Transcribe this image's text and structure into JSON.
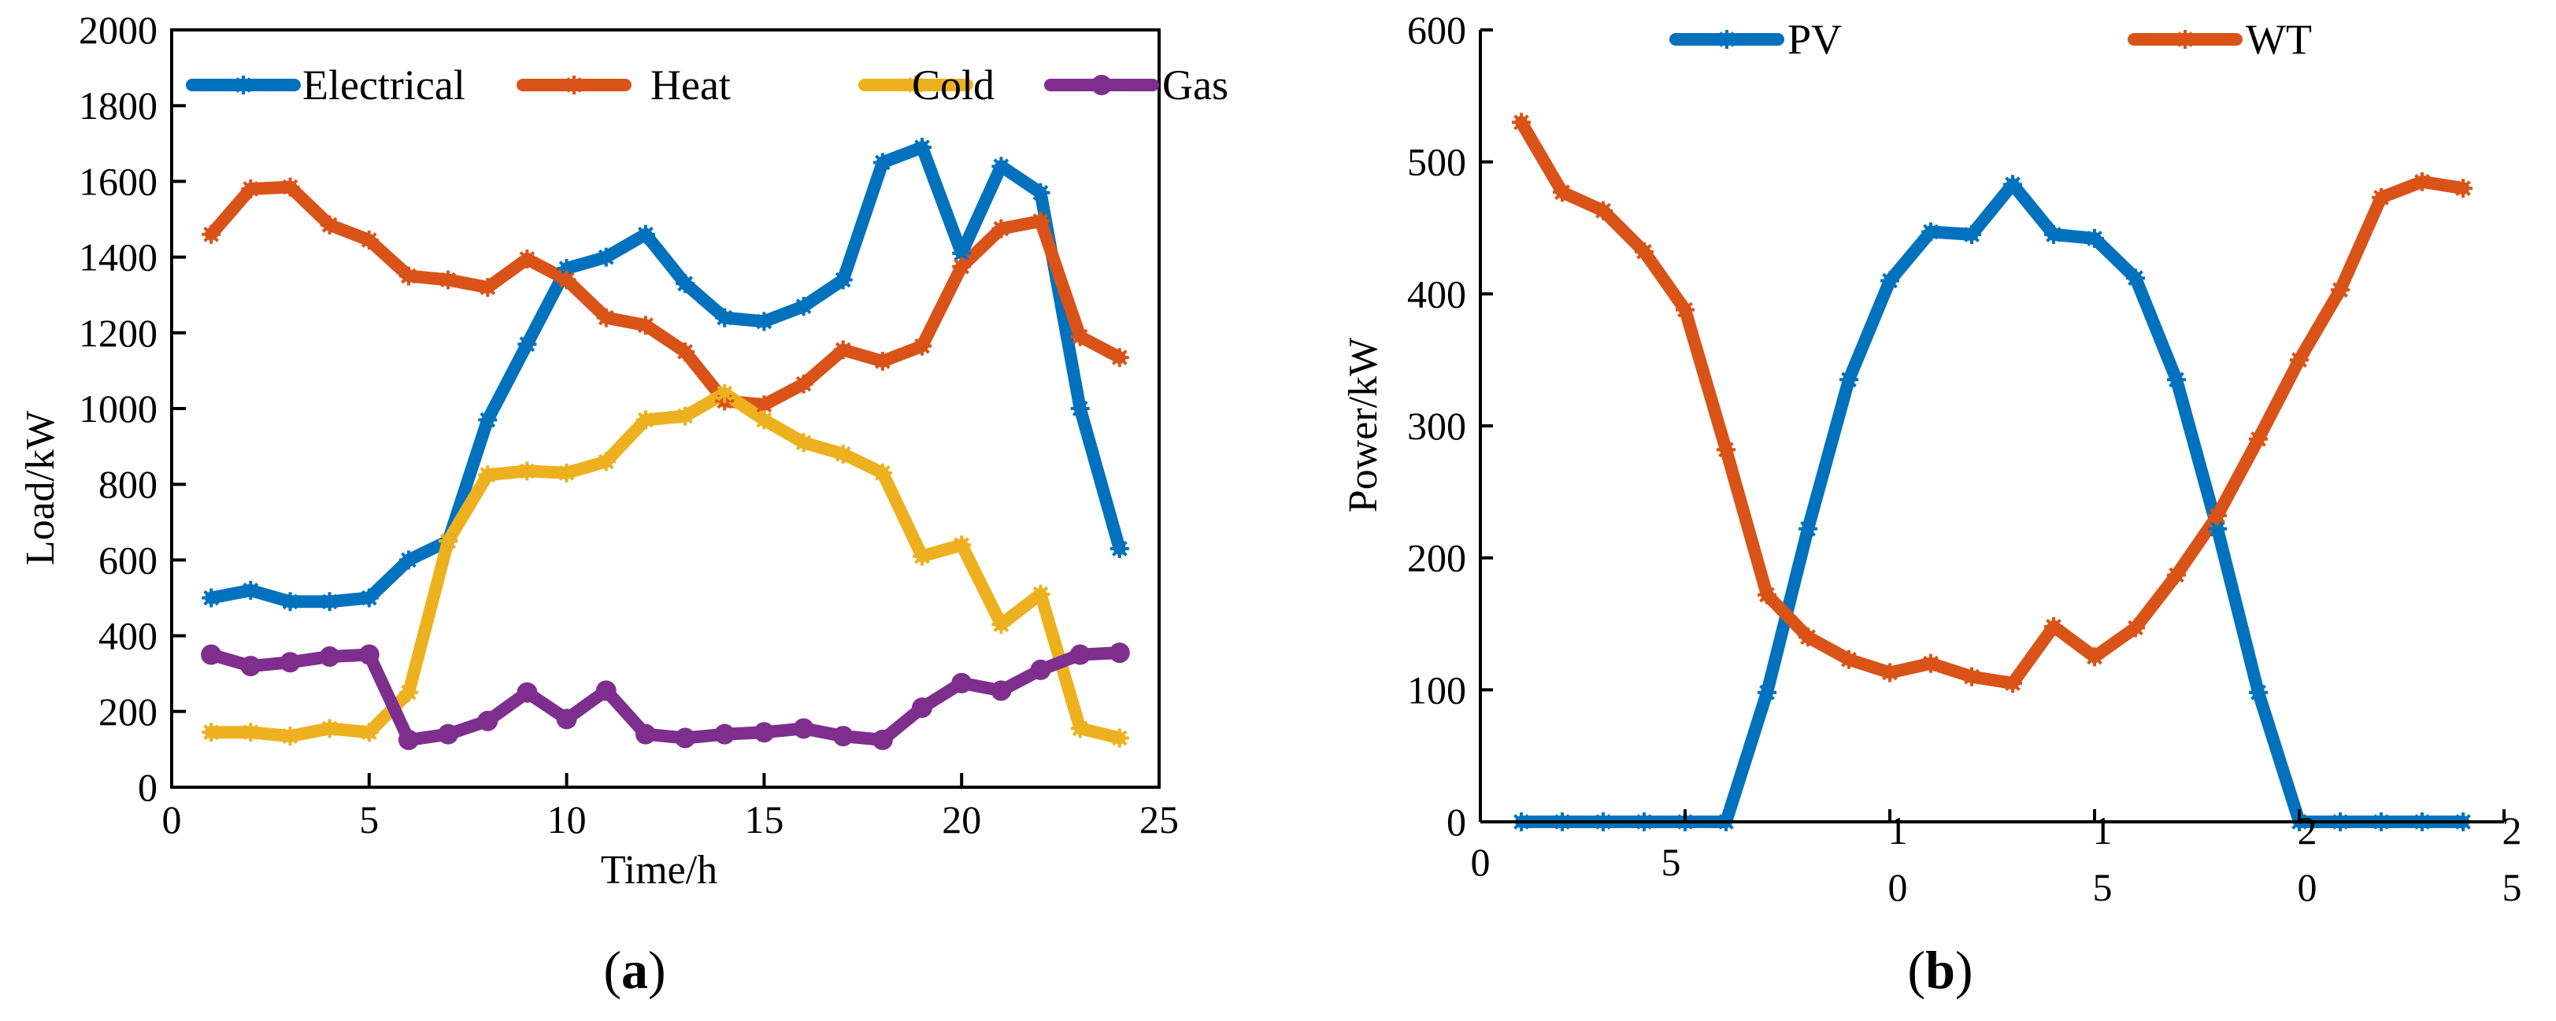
{
  "chart_data": [
    {
      "type": "line",
      "caption_letter": "a",
      "xlabel": "Time/h",
      "ylabel": "Load/kW",
      "xlim": [
        0,
        25
      ],
      "ylim": [
        0,
        2000
      ],
      "xticks": [
        "0",
        "5",
        "10",
        "15",
        "20",
        "25"
      ],
      "yticks": [
        "0",
        "200",
        "400",
        "600",
        "800",
        "1000",
        "1200",
        "1400",
        "1600",
        "1800",
        "2000"
      ],
      "legend_position": "top",
      "x": [
        1,
        2,
        3,
        4,
        5,
        6,
        7,
        8,
        9,
        10,
        11,
        12,
        13,
        14,
        15,
        16,
        17,
        18,
        19,
        20,
        21,
        22,
        23,
        24
      ],
      "series": [
        {
          "name": "Electrical",
          "color": "#0072BD",
          "marker": "star",
          "values": [
            500,
            520,
            490,
            490,
            500,
            600,
            650,
            970,
            1170,
            1370,
            1400,
            1460,
            1330,
            1240,
            1230,
            1270,
            1340,
            1650,
            1690,
            1410,
            1640,
            1570,
            1000,
            630
          ]
        },
        {
          "name": "Heat",
          "color": "#D95319",
          "marker": "star",
          "values": [
            1460,
            1580,
            1585,
            1485,
            1445,
            1350,
            1340,
            1320,
            1395,
            1340,
            1240,
            1220,
            1150,
            1020,
            1010,
            1065,
            1155,
            1125,
            1165,
            1375,
            1475,
            1495,
            1190,
            1135
          ]
        },
        {
          "name": "Cold",
          "color": "#EDB120",
          "marker": "star",
          "values": [
            145,
            145,
            135,
            155,
            145,
            250,
            650,
            825,
            835,
            830,
            860,
            970,
            980,
            1040,
            970,
            910,
            880,
            830,
            610,
            640,
            430,
            510,
            155,
            130
          ]
        },
        {
          "name": "Gas",
          "color": "#7E2F8E",
          "marker": "circle",
          "values": [
            350,
            320,
            330,
            345,
            350,
            125,
            140,
            175,
            250,
            180,
            255,
            140,
            130,
            140,
            145,
            155,
            135,
            125,
            210,
            275,
            255,
            310,
            350,
            355
          ]
        }
      ]
    },
    {
      "type": "line",
      "caption_letter": "b",
      "xlabel": "",
      "ylabel": "Power/kW",
      "xlim": [
        0,
        25
      ],
      "ylim": [
        0,
        600
      ],
      "xticks": [
        "0",
        "5",
        "10",
        "15",
        "20",
        "25"
      ],
      "yticks": [
        "0",
        "100",
        "200",
        "300",
        "400",
        "500",
        "600"
      ],
      "legend_position": "top",
      "x": [
        1,
        2,
        3,
        4,
        5,
        6,
        7,
        8,
        9,
        10,
        11,
        12,
        13,
        14,
        15,
        16,
        17,
        18,
        19,
        20,
        21,
        22,
        23,
        24
      ],
      "series": [
        {
          "name": "PV",
          "color": "#0072BD",
          "marker": "star",
          "values": [
            0,
            0,
            0,
            0,
            0,
            0,
            98,
            222,
            335,
            410,
            447,
            445,
            483,
            445,
            442,
            412,
            335,
            222,
            98,
            0,
            0,
            0,
            0,
            0
          ]
        },
        {
          "name": "WT",
          "color": "#D95319",
          "marker": "star",
          "values": [
            530,
            477,
            463,
            432,
            388,
            282,
            172,
            140,
            123,
            113,
            120,
            110,
            105,
            148,
            125,
            147,
            187,
            232,
            290,
            350,
            403,
            473,
            485,
            480
          ]
        }
      ]
    }
  ]
}
